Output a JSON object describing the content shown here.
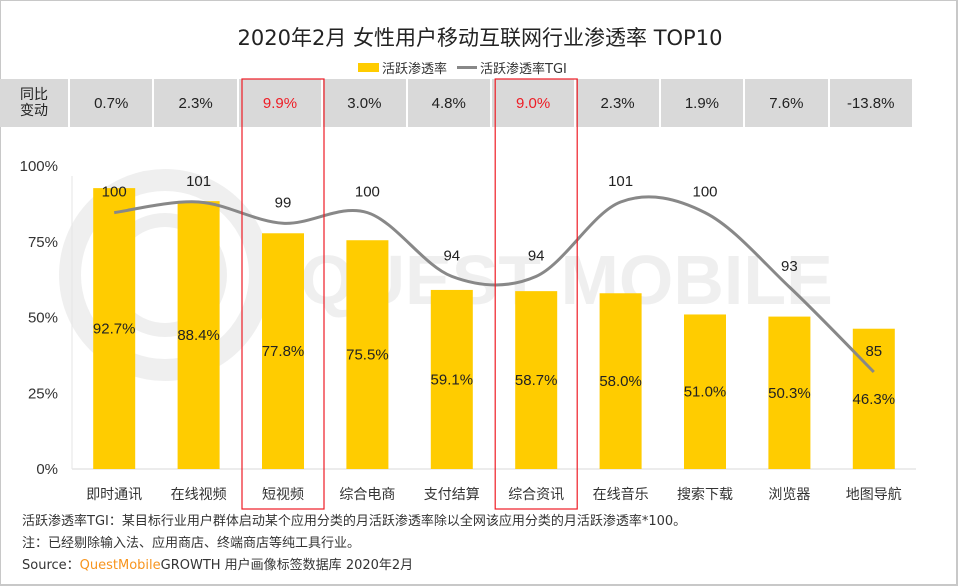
{
  "chart_data": {
    "type": "bar",
    "title": "2020年2月 女性用户移动互联网行业渗透率 TOP10",
    "legend": [
      "活跃渗透率",
      "活跃渗透率TGI"
    ],
    "legend_position": "top-center",
    "categories": [
      "即时通讯",
      "在线视频",
      "短视频",
      "综合电商",
      "支付结算",
      "综合资讯",
      "在线音乐",
      "搜索下载",
      "浏览器",
      "地图导航"
    ],
    "series": [
      {
        "name": "活跃渗透率",
        "type": "bar",
        "unit": "%",
        "values": [
          92.7,
          88.4,
          77.8,
          75.5,
          59.1,
          58.7,
          58.0,
          51.0,
          50.3,
          46.3
        ],
        "labels": [
          "92.7%",
          "88.4%",
          "77.8%",
          "75.5%",
          "59.1%",
          "58.7%",
          "58.0%",
          "51.0%",
          "50.3%",
          "46.3%"
        ]
      },
      {
        "name": "活跃渗透率TGI",
        "type": "line",
        "smooth": true,
        "values": [
          100,
          101,
          99,
          100,
          94,
          94,
          101,
          100,
          93,
          85
        ]
      }
    ],
    "yoy_change": {
      "header": "同比\n变动",
      "values": [
        "0.7%",
        "2.3%",
        "9.9%",
        "3.0%",
        "4.8%",
        "9.0%",
        "2.3%",
        "1.9%",
        "7.6%",
        "-13.8%"
      ],
      "highlighted": [
        2,
        5
      ]
    },
    "yaxis": {
      "ticks": [
        "0%",
        "25%",
        "50%",
        "75%",
        "100%"
      ],
      "ylim": [
        0,
        100
      ]
    },
    "grid": false,
    "colors": {
      "bar": "#FFCC00",
      "line": "#888888",
      "highlight": "#EE1C25",
      "table_bg": "#D9D9D9"
    }
  },
  "notes": {
    "line1": "活跃渗透率TGI：某目标行业用户群体启动某个应用分类的月活跃渗透率除以全网该应用分类的月活跃渗透率*100。",
    "line2": "注：已经剔除输入法、应用商店、终端商店等纯工具行业。",
    "source_prefix": "Source：",
    "source_brand": "QuestMobile",
    "source_rest": "GROWTH 用户画像标签数据库 2020年2月"
  },
  "watermark": "QUEST MOBILE"
}
